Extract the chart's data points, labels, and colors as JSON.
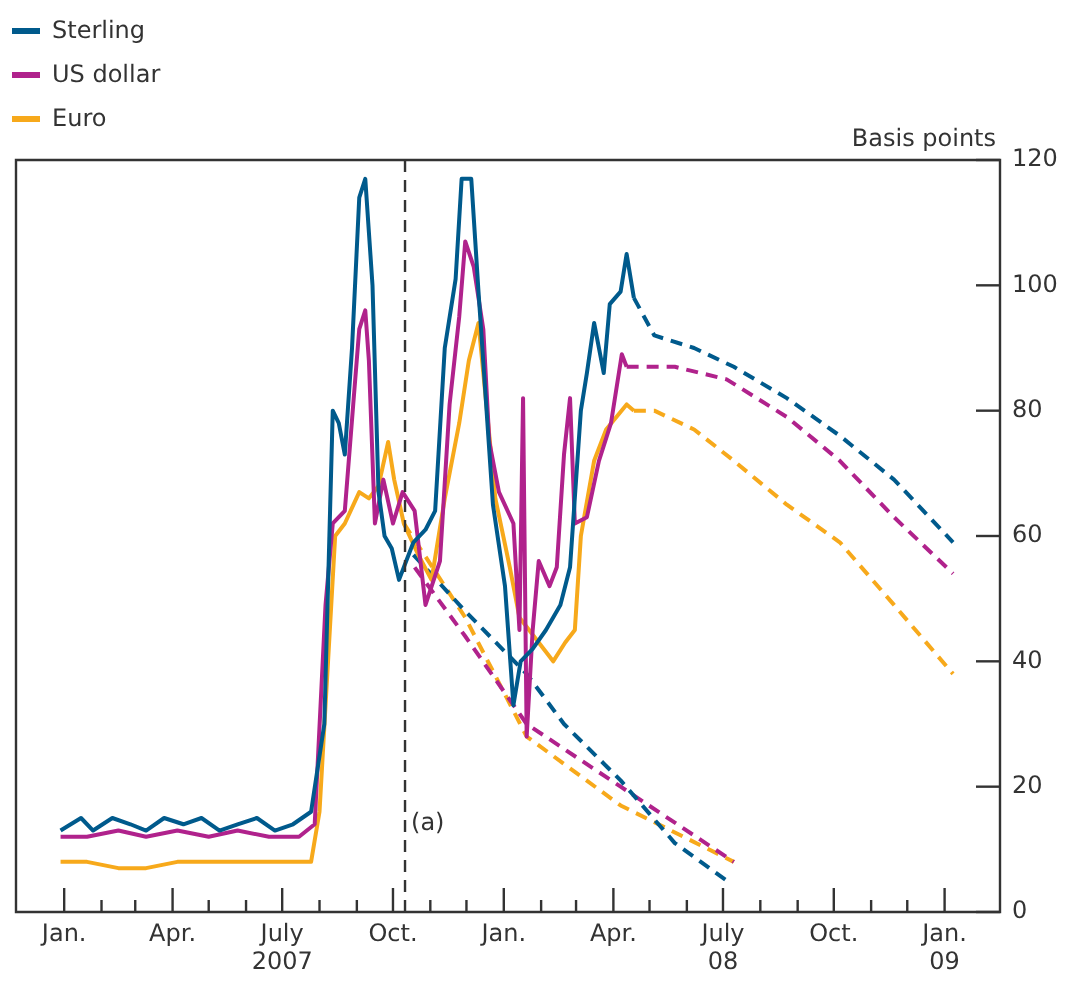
{
  "chart_data": {
    "type": "line",
    "ylabel": "Basis points",
    "legend": "top left",
    "marker": "none",
    "xlim": [
      "2006-11-22",
      "2009-02-16"
    ],
    "ylim": [
      0,
      120
    ],
    "yticks": [
      0,
      20,
      40,
      60,
      80,
      100,
      120
    ],
    "xticks": [
      {
        "value": "2007-01-01",
        "label": "Jan."
      },
      {
        "value": "2007-02-01",
        "label": null
      },
      {
        "value": "2007-03-01",
        "label": null
      },
      {
        "value": "2007-04-01",
        "label": "Apr."
      },
      {
        "value": "2007-05-01",
        "label": null
      },
      {
        "value": "2007-06-01",
        "label": null
      },
      {
        "value": "2007-07-01",
        "label": "July\n2007"
      },
      {
        "value": "2007-08-01",
        "label": null
      },
      {
        "value": "2007-09-01",
        "label": null
      },
      {
        "value": "2007-10-01",
        "label": "Oct."
      },
      {
        "value": "2007-11-01",
        "label": null
      },
      {
        "value": "2007-12-01",
        "label": null
      },
      {
        "value": "2008-01-01",
        "label": "Jan."
      },
      {
        "value": "2008-02-01",
        "label": null
      },
      {
        "value": "2008-03-01",
        "label": null
      },
      {
        "value": "2008-04-01",
        "label": "Apr."
      },
      {
        "value": "2008-05-01",
        "label": null
      },
      {
        "value": "2008-06-01",
        "label": null
      },
      {
        "value": "2008-07-01",
        "label": "July\n08"
      },
      {
        "value": "2008-08-01",
        "label": null
      },
      {
        "value": "2008-09-01",
        "label": null
      },
      {
        "value": "2008-10-01",
        "label": "Oct."
      },
      {
        "value": "2008-11-01",
        "label": null
      },
      {
        "value": "2008-12-01",
        "label": null
      },
      {
        "value": "2009-01-01",
        "label": "Jan.\n09"
      }
    ],
    "ref_lines": [
      {
        "axis": "x",
        "value": "2007-10-11",
        "label": "(a)",
        "color": "#333333",
        "line_style": "dashed"
      }
    ],
    "series": [
      {
        "name": "Sterling",
        "color": "#005a8c",
        "x": [
          "2006-12-29",
          "2007-01-15",
          "2007-01-25",
          "2007-02-10",
          "2007-02-25",
          "2007-03-10",
          "2007-03-25",
          "2007-04-10",
          "2007-04-25",
          "2007-05-10",
          "2007-05-25",
          "2007-06-10",
          "2007-06-25",
          "2007-07-10",
          "2007-07-25",
          "2007-08-05",
          "2007-08-12",
          "2007-08-17",
          "2007-08-22",
          "2007-08-28",
          "2007-09-03",
          "2007-09-08",
          "2007-09-14",
          "2007-09-19",
          "2007-09-24",
          "2007-09-30",
          "2007-10-06",
          "2007-10-12",
          "2007-10-18",
          "2007-10-28",
          "2007-11-05",
          "2007-11-13",
          "2007-11-22",
          "2007-11-27",
          "2007-12-05",
          "2007-12-11",
          "2007-12-23",
          "2008-01-02",
          "2008-01-09",
          "2008-01-15",
          "2008-01-25",
          "2008-02-05",
          "2008-02-17",
          "2008-02-25",
          "2008-03-05",
          "2008-03-10",
          "2008-03-16",
          "2008-03-24",
          "2008-03-29",
          "2008-04-07",
          "2008-04-12",
          "2008-04-18"
        ],
        "values": [
          13,
          15,
          13,
          15,
          14,
          13,
          15,
          14,
          15,
          13,
          14,
          15,
          13,
          14,
          16,
          30,
          80,
          78,
          73,
          90,
          114,
          117,
          100,
          67,
          60,
          58,
          53,
          56,
          59,
          61,
          64,
          90,
          101,
          117,
          117,
          99,
          65,
          52,
          33,
          40,
          42,
          45,
          49,
          55,
          80,
          86,
          94,
          86,
          97,
          99,
          105,
          98
        ]
      },
      {
        "name": "US dollar",
        "color": "#b0228c",
        "x": [
          "2006-12-29",
          "2007-01-20",
          "2007-02-15",
          "2007-03-10",
          "2007-04-05",
          "2007-05-01",
          "2007-05-25",
          "2007-06-20",
          "2007-07-15",
          "2007-07-28",
          "2007-08-06",
          "2007-08-12",
          "2007-08-22",
          "2007-08-29",
          "2007-09-03",
          "2007-09-08",
          "2007-09-11",
          "2007-09-16",
          "2007-09-23",
          "2007-10-01",
          "2007-10-09",
          "2007-10-19",
          "2007-10-28",
          "2007-11-09",
          "2007-11-17",
          "2007-11-25",
          "2007-11-30",
          "2007-12-07",
          "2007-12-15",
          "2007-12-20",
          "2007-12-28",
          "2008-01-09",
          "2008-01-14",
          "2008-01-17",
          "2008-01-20",
          "2008-01-25",
          "2008-01-30",
          "2008-02-08",
          "2008-02-14",
          "2008-02-20",
          "2008-02-25",
          "2008-02-29",
          "2008-03-10",
          "2008-03-20",
          "2008-03-30",
          "2008-04-08",
          "2008-04-12"
        ],
        "values": [
          12,
          12,
          13,
          12,
          13,
          12,
          13,
          12,
          12,
          14,
          49,
          62,
          64,
          81,
          93,
          96,
          88,
          62,
          69,
          62,
          67,
          64,
          49,
          56,
          81,
          95,
          107,
          103,
          93,
          75,
          67,
          62,
          45,
          82,
          28,
          45,
          56,
          52,
          55,
          73,
          82,
          62,
          63,
          72,
          78,
          89,
          87
        ]
      },
      {
        "name": "Euro",
        "color": "#f7a91b",
        "x": [
          "2006-12-29",
          "2007-01-20",
          "2007-02-15",
          "2007-03-10",
          "2007-04-05",
          "2007-05-01",
          "2007-06-01",
          "2007-07-01",
          "2007-07-25",
          "2007-08-01",
          "2007-08-14",
          "2007-08-22",
          "2007-09-03",
          "2007-09-11",
          "2007-09-19",
          "2007-09-27",
          "2007-10-02",
          "2007-10-10",
          "2007-10-22",
          "2007-11-02",
          "2007-11-13",
          "2007-11-25",
          "2007-12-03",
          "2007-12-11",
          "2007-12-17",
          "2007-12-25",
          "2008-01-06",
          "2008-01-14",
          "2008-01-30",
          "2008-02-11",
          "2008-02-21",
          "2008-02-29",
          "2008-03-05",
          "2008-03-16",
          "2008-03-26",
          "2008-04-12",
          "2008-04-18"
        ],
        "values": [
          8,
          8,
          7,
          7,
          8,
          8,
          8,
          8,
          8,
          16,
          60,
          62,
          67,
          66,
          68,
          75,
          69,
          62,
          57,
          53,
          66,
          78,
          88,
          94,
          82,
          66,
          55,
          47,
          43,
          40,
          43,
          45,
          60,
          72,
          77,
          81,
          80
        ]
      },
      {
        "color": "#005a8c",
        "line_style": "dashed",
        "x": [
          "2007-10-18",
          "2007-11-30",
          "2008-01-20",
          "2008-02-20",
          "2008-04-07",
          "2008-05-22",
          "2008-07-04"
        ],
        "values": [
          57,
          48,
          38,
          30,
          21,
          11,
          5
        ]
      },
      {
        "color": "#b0228c",
        "line_style": "dashed",
        "x": [
          "2007-10-19",
          "2007-11-30",
          "2008-01-20",
          "2008-04-07",
          "2008-07-10"
        ],
        "values": [
          55,
          44,
          30,
          20,
          8
        ]
      },
      {
        "color": "#f7a91b",
        "line_style": "dashed",
        "x": [
          "2007-10-10",
          "2007-11-30",
          "2008-01-20",
          "2008-04-07",
          "2008-07-10"
        ],
        "values": [
          62,
          47,
          28,
          17,
          8
        ]
      },
      {
        "color": "#005a8c",
        "line_style": "dashed",
        "x": [
          "2008-04-18",
          "2008-05-05",
          "2008-06-07",
          "2008-07-10",
          "2008-08-23",
          "2008-10-06",
          "2008-11-20",
          "2009-01-08"
        ],
        "values": [
          98,
          92,
          90,
          87,
          82,
          76,
          69,
          59
        ]
      },
      {
        "color": "#b0228c",
        "line_style": "dashed",
        "x": [
          "2008-04-12",
          "2008-05-22",
          "2008-07-04",
          "2008-08-23",
          "2008-10-06",
          "2008-11-20",
          "2009-01-08"
        ],
        "values": [
          87,
          87,
          85,
          79,
          72,
          63,
          54
        ]
      },
      {
        "color": "#f7a91b",
        "line_style": "dashed",
        "x": [
          "2008-04-18",
          "2008-05-05",
          "2008-06-07",
          "2008-07-10",
          "2008-08-23",
          "2008-10-06",
          "2008-11-20",
          "2009-01-08"
        ],
        "values": [
          80,
          80,
          77,
          72,
          65,
          59,
          49,
          38
        ]
      }
    ]
  }
}
